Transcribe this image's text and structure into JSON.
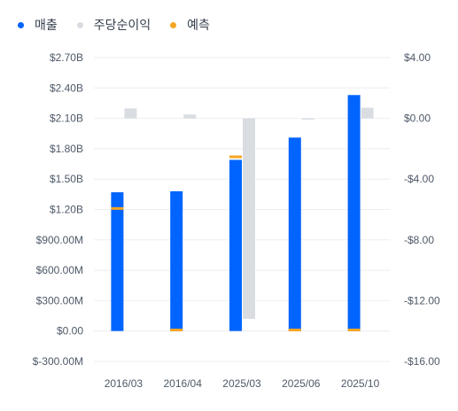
{
  "legend": [
    {
      "label": "매출",
      "color": "#0064ff"
    },
    {
      "label": "주당순이익",
      "color": "#d9dde2"
    },
    {
      "label": "예측",
      "color": "#f5a623"
    }
  ],
  "chart_data": {
    "type": "bar",
    "categories": [
      "2016/03",
      "2016/04",
      "2025/03",
      "2025/06",
      "2025/10"
    ],
    "series": [
      {
        "name": "매출",
        "axis": "left",
        "color": "#0064ff",
        "values": [
          1370000000,
          1380000000,
          1690000000,
          1910000000,
          2330000000
        ]
      },
      {
        "name": "주당순이익",
        "axis": "right",
        "color": "#d9dde2",
        "values": [
          0.65,
          0.25,
          -13.2,
          -0.05,
          0.7
        ]
      }
    ],
    "forecast_markers": {
      "name": "예측",
      "color": "#f5a623",
      "revenue": [
        1210000000,
        10000000,
        1720000000,
        10000000,
        10000000
      ]
    },
    "left_axis": {
      "ylim": [
        -300000000,
        2700000000
      ],
      "ticks": [
        -300000000,
        0,
        300000000,
        600000000,
        900000000,
        1200000000,
        1500000000,
        1800000000,
        2100000000,
        2400000000,
        2700000000
      ],
      "tick_labels": [
        "$-300.00M",
        "$0.00",
        "$300.00M",
        "$600.00M",
        "$900.00M",
        "$1.20B",
        "$1.50B",
        "$1.80B",
        "$2.10B",
        "$2.40B",
        "$2.70B"
      ]
    },
    "right_axis": {
      "ylim": [
        -16,
        4
      ],
      "ticks": [
        -16,
        -12,
        -8,
        -4,
        0,
        4
      ],
      "tick_labels": [
        "-$16.00",
        "-$12.00",
        "-$8.00",
        "-$4.00",
        "$0.00",
        "$4.00"
      ]
    },
    "grid": true,
    "legend_position": "top-left"
  }
}
